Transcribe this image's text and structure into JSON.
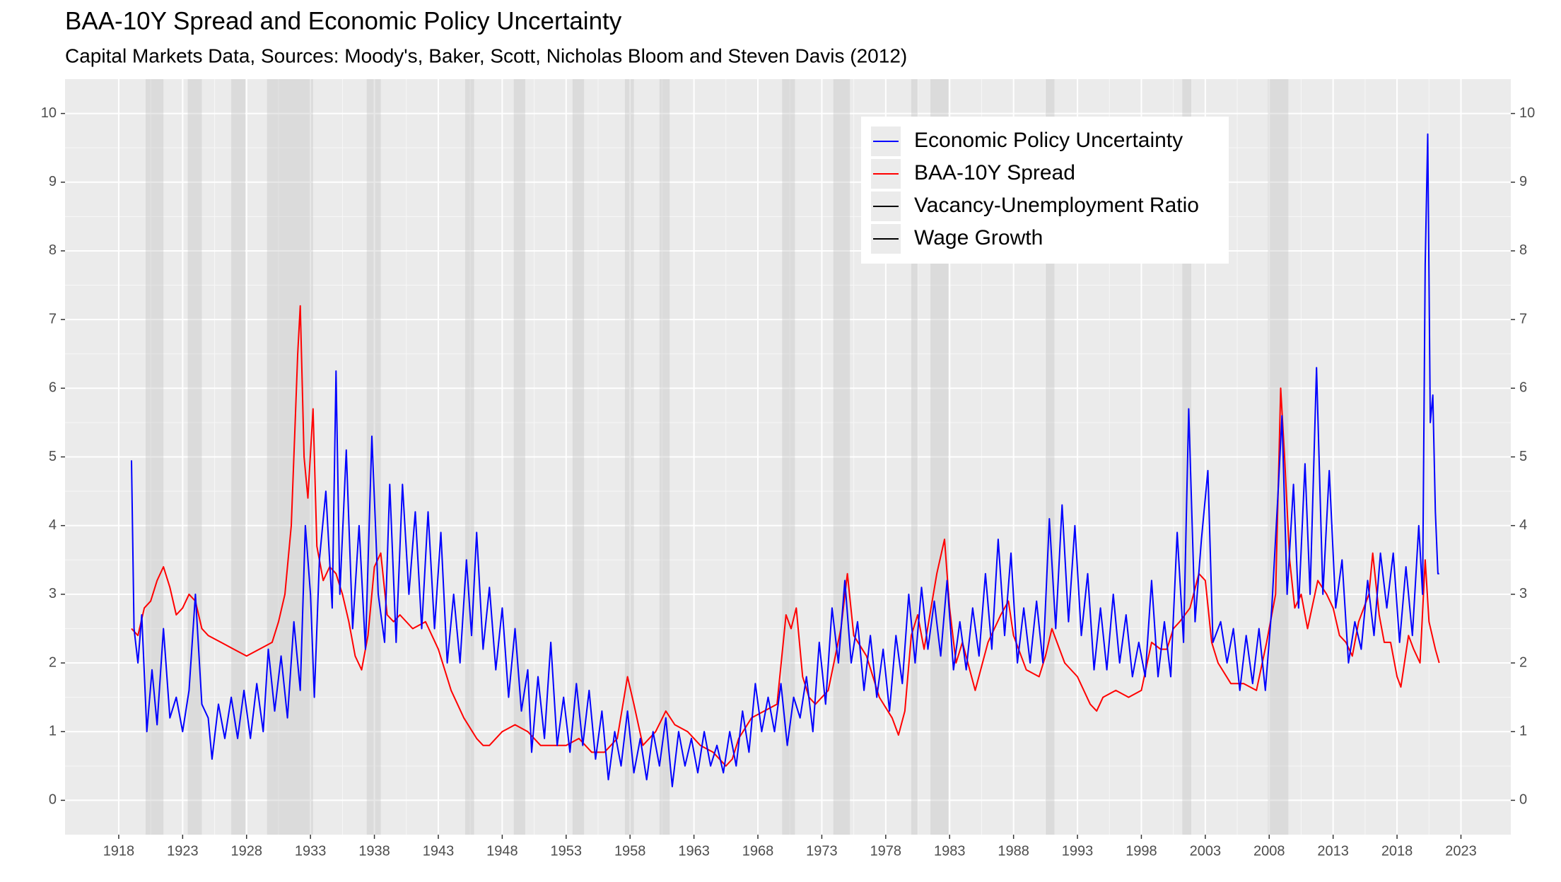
{
  "chart_data": {
    "type": "line",
    "title": "BAA-10Y Spread and Economic Policy Uncertainty",
    "subtitle": "Capital Markets Data, Sources: Moody's, Baker, Scott, Nicholas Bloom and Steven Davis (2012)",
    "xlim": [
      1913.8,
      2026.9
    ],
    "xticks": [
      1918,
      1923,
      1928,
      1933,
      1938,
      1943,
      1948,
      1953,
      1958,
      1963,
      1968,
      1973,
      1978,
      1983,
      1988,
      1993,
      1998,
      2003,
      2008,
      2013,
      2018,
      2023
    ],
    "ylim": [
      -0.5,
      10.5
    ],
    "yticks": [
      0,
      1,
      2,
      3,
      4,
      5,
      6,
      7,
      8,
      9,
      10
    ],
    "y2lim": [
      -0.5,
      10.5
    ],
    "y2ticks": [
      0,
      1,
      2,
      3,
      4,
      5,
      6,
      7,
      8,
      9,
      10
    ],
    "grid": true,
    "legend": "top-right",
    "recessions": [
      [
        1920.1,
        1921.5
      ],
      [
        1923.4,
        1924.5
      ],
      [
        1926.8,
        1927.9
      ],
      [
        1929.6,
        1933.2
      ],
      [
        1937.4,
        1938.5
      ],
      [
        1945.1,
        1945.8
      ],
      [
        1948.9,
        1949.8
      ],
      [
        1953.5,
        1954.4
      ],
      [
        1957.6,
        1958.3
      ],
      [
        1960.3,
        1961.1
      ],
      [
        1969.9,
        1970.9
      ],
      [
        1973.9,
        1975.2
      ],
      [
        1980.0,
        1980.5
      ],
      [
        1981.5,
        1982.9
      ],
      [
        1990.5,
        1991.2
      ],
      [
        2001.2,
        2001.9
      ],
      [
        2007.9,
        2009.5
      ]
    ],
    "series": [
      {
        "name": "Economic Policy Uncertainty",
        "color": "#0000ff",
        "x": [
          1919.0,
          1919.2,
          1919.5,
          1919.8,
          1920.2,
          1920.6,
          1921.0,
          1921.5,
          1922.0,
          1922.5,
          1923.0,
          1923.5,
          1924.0,
          1924.5,
          1925.0,
          1925.3,
          1925.8,
          1926.3,
          1926.8,
          1927.3,
          1927.8,
          1928.3,
          1928.8,
          1929.3,
          1929.7,
          1930.2,
          1930.7,
          1931.2,
          1931.7,
          1932.2,
          1932.6,
          1933.0,
          1933.3,
          1933.7,
          1934.2,
          1934.7,
          1935.0,
          1935.3,
          1935.8,
          1936.3,
          1936.8,
          1937.3,
          1937.8,
          1938.3,
          1938.8,
          1939.2,
          1939.7,
          1940.2,
          1940.7,
          1941.2,
          1941.7,
          1942.2,
          1942.7,
          1943.2,
          1943.7,
          1944.2,
          1944.7,
          1945.2,
          1945.6,
          1946.0,
          1946.5,
          1947.0,
          1947.5,
          1948.0,
          1948.5,
          1949.0,
          1949.5,
          1950.0,
          1950.3,
          1950.8,
          1951.3,
          1951.8,
          1952.3,
          1952.8,
          1953.3,
          1953.8,
          1954.3,
          1954.8,
          1955.3,
          1955.8,
          1956.3,
          1956.8,
          1957.3,
          1957.8,
          1958.3,
          1958.8,
          1959.3,
          1959.8,
          1960.3,
          1960.8,
          1961.3,
          1961.8,
          1962.3,
          1962.8,
          1963.3,
          1963.8,
          1964.3,
          1964.8,
          1965.3,
          1965.8,
          1966.3,
          1966.8,
          1967.3,
          1967.8,
          1968.3,
          1968.8,
          1969.3,
          1969.8,
          1970.3,
          1970.8,
          1971.3,
          1971.8,
          1972.3,
          1972.8,
          1973.3,
          1973.8,
          1974.3,
          1974.8,
          1975.3,
          1975.8,
          1976.3,
          1976.8,
          1977.3,
          1977.8,
          1978.3,
          1978.8,
          1979.3,
          1979.8,
          1980.3,
          1980.8,
          1981.3,
          1981.8,
          1982.3,
          1982.8,
          1983.3,
          1983.8,
          1984.3,
          1984.8,
          1985.3,
          1985.8,
          1986.3,
          1986.8,
          1987.3,
          1987.8,
          1988.3,
          1988.8,
          1989.3,
          1989.8,
          1990.3,
          1990.8,
          1991.3,
          1991.8,
          1992.3,
          1992.8,
          1993.3,
          1993.8,
          1994.3,
          1994.8,
          1995.3,
          1995.8,
          1996.3,
          1996.8,
          1997.3,
          1997.8,
          1998.3,
          1998.8,
          1999.3,
          1999.8,
          2000.3,
          2000.8,
          2001.3,
          2001.7,
          2002.2,
          2002.7,
          2003.2,
          2003.6,
          2004.2,
          2004.7,
          2005.2,
          2005.7,
          2006.2,
          2006.7,
          2007.2,
          2007.7,
          2008.2,
          2008.7,
          2009.0,
          2009.4,
          2009.9,
          2010.3,
          2010.8,
          2011.2,
          2011.7,
          2012.2,
          2012.7,
          2013.2,
          2013.7,
          2014.2,
          2014.7,
          2015.2,
          2015.7,
          2016.2,
          2016.7,
          2017.2,
          2017.7,
          2018.2,
          2018.7,
          2019.2,
          2019.7,
          2020.0,
          2020.2,
          2020.4,
          2020.6,
          2020.8,
          2021.0,
          2021.2,
          2021.3
        ],
        "values": [
          4.95,
          2.5,
          2.0,
          2.7,
          1.0,
          1.9,
          1.1,
          2.5,
          1.2,
          1.5,
          1.0,
          1.6,
          3.0,
          1.4,
          1.2,
          0.6,
          1.4,
          0.9,
          1.5,
          0.9,
          1.6,
          0.9,
          1.7,
          1.0,
          2.2,
          1.3,
          2.1,
          1.2,
          2.6,
          1.6,
          4.0,
          3.0,
          1.5,
          3.5,
          4.5,
          2.8,
          6.25,
          3.0,
          5.1,
          2.5,
          4.0,
          2.2,
          5.3,
          3.0,
          2.3,
          4.6,
          2.3,
          4.6,
          3.0,
          4.2,
          2.5,
          4.2,
          2.5,
          3.9,
          2.0,
          3.0,
          2.0,
          3.5,
          2.4,
          3.9,
          2.2,
          3.1,
          1.9,
          2.8,
          1.5,
          2.5,
          1.3,
          1.9,
          0.7,
          1.8,
          0.9,
          2.3,
          0.8,
          1.5,
          0.7,
          1.7,
          0.8,
          1.6,
          0.6,
          1.3,
          0.3,
          1.0,
          0.5,
          1.3,
          0.4,
          0.9,
          0.3,
          1.0,
          0.5,
          1.2,
          0.2,
          1.0,
          0.5,
          0.9,
          0.4,
          1.0,
          0.5,
          0.8,
          0.4,
          1.0,
          0.5,
          1.3,
          0.7,
          1.7,
          1.0,
          1.5,
          1.0,
          1.7,
          0.8,
          1.5,
          1.2,
          1.8,
          1.0,
          2.3,
          1.4,
          2.8,
          2.0,
          3.2,
          2.0,
          2.6,
          1.6,
          2.4,
          1.5,
          2.2,
          1.3,
          2.4,
          1.7,
          3.0,
          2.0,
          3.1,
          2.2,
          2.9,
          2.1,
          3.2,
          1.9,
          2.6,
          1.9,
          2.8,
          2.1,
          3.3,
          2.2,
          3.8,
          2.4,
          3.6,
          2.0,
          2.8,
          2.0,
          2.9,
          2.0,
          4.1,
          2.5,
          4.3,
          2.6,
          4.0,
          2.4,
          3.3,
          1.9,
          2.8,
          1.9,
          3.0,
          2.0,
          2.7,
          1.8,
          2.3,
          1.8,
          3.2,
          1.8,
          2.6,
          1.8,
          3.9,
          2.3,
          5.7,
          2.6,
          3.8,
          4.8,
          2.3,
          2.6,
          2.0,
          2.5,
          1.6,
          2.4,
          1.7,
          2.5,
          1.6,
          2.8,
          4.5,
          5.6,
          3.0,
          4.6,
          2.8,
          4.9,
          3.0,
          6.3,
          3.0,
          4.8,
          2.8,
          3.5,
          2.0,
          2.6,
          2.2,
          3.2,
          2.4,
          3.6,
          2.8,
          3.6,
          2.3,
          3.4,
          2.4,
          4.0,
          3.0,
          7.8,
          9.7,
          5.5,
          5.9,
          4.2,
          3.3,
          3.3
        ]
      },
      {
        "name": "BAA-10Y Spread",
        "color": "#ff0000",
        "x": [
          1919.0,
          1919.5,
          1920.0,
          1920.5,
          1921.0,
          1921.5,
          1922.0,
          1922.5,
          1923.0,
          1923.5,
          1924.0,
          1924.5,
          1925.0,
          1926.0,
          1927.0,
          1928.0,
          1929.0,
          1930.0,
          1930.5,
          1931.0,
          1931.5,
          1931.8,
          1932.0,
          1932.2,
          1932.5,
          1932.8,
          1933.2,
          1933.5,
          1934.0,
          1934.5,
          1935.0,
          1935.5,
          1936.0,
          1936.5,
          1937.0,
          1937.5,
          1938.0,
          1938.5,
          1939.0,
          1939.5,
          1940.0,
          1941.0,
          1942.0,
          1943.0,
          1944.0,
          1945.0,
          1946.0,
          1946.5,
          1947.0,
          1948.0,
          1949.0,
          1950.0,
          1951.0,
          1952.0,
          1953.0,
          1954.0,
          1955.0,
          1956.0,
          1957.0,
          1957.8,
          1958.3,
          1959.0,
          1960.0,
          1960.8,
          1961.5,
          1962.5,
          1963.5,
          1964.5,
          1965.5,
          1966.0,
          1966.5,
          1967.5,
          1968.5,
          1969.5,
          1970.2,
          1970.6,
          1971.0,
          1971.5,
          1972.0,
          1972.5,
          1973.5,
          1974.5,
          1975.0,
          1975.5,
          1976.5,
          1977.5,
          1978.5,
          1979.0,
          1979.5,
          1980.0,
          1980.5,
          1981.0,
          1982.0,
          1982.6,
          1983.0,
          1983.5,
          1984.0,
          1985.0,
          1986.0,
          1987.0,
          1987.6,
          1988.0,
          1989.0,
          1990.0,
          1990.5,
          1991.0,
          1992.0,
          1993.0,
          1994.0,
          1994.5,
          1995.0,
          1996.0,
          1997.0,
          1998.0,
          1998.8,
          1999.5,
          2000.0,
          2000.5,
          2001.0,
          2001.8,
          2002.5,
          2003.0,
          2003.5,
          2004.0,
          2005.0,
          2006.0,
          2007.0,
          2007.8,
          2008.5,
          2008.9,
          2009.2,
          2009.6,
          2010.0,
          2010.5,
          2011.0,
          2011.8,
          2012.5,
          2013.0,
          2013.5,
          2014.0,
          2014.5,
          2015.0,
          2015.8,
          2016.1,
          2016.6,
          2017.0,
          2017.5,
          2018.0,
          2018.3,
          2018.9,
          2019.3,
          2019.8,
          2020.2,
          2020.5,
          2021.0,
          2021.3
        ],
        "values": [
          2.5,
          2.4,
          2.8,
          2.9,
          3.2,
          3.4,
          3.1,
          2.7,
          2.8,
          3.0,
          2.9,
          2.5,
          2.4,
          2.3,
          2.2,
          2.1,
          2.2,
          2.3,
          2.6,
          3.0,
          4.0,
          5.5,
          6.5,
          7.2,
          5.0,
          4.4,
          5.7,
          3.7,
          3.2,
          3.4,
          3.3,
          3.0,
          2.6,
          2.1,
          1.9,
          2.4,
          3.4,
          3.6,
          2.7,
          2.6,
          2.7,
          2.5,
          2.6,
          2.2,
          1.6,
          1.2,
          0.9,
          0.8,
          0.8,
          1.0,
          1.1,
          1.0,
          0.8,
          0.8,
          0.8,
          0.9,
          0.7,
          0.7,
          0.9,
          1.8,
          1.4,
          0.8,
          1.0,
          1.3,
          1.1,
          1.0,
          0.8,
          0.7,
          0.5,
          0.6,
          0.9,
          1.2,
          1.3,
          1.4,
          2.7,
          2.5,
          2.8,
          1.8,
          1.5,
          1.4,
          1.6,
          2.5,
          3.3,
          2.4,
          2.1,
          1.5,
          1.2,
          0.95,
          1.3,
          2.4,
          2.7,
          2.2,
          3.3,
          3.8,
          2.8,
          2.0,
          2.3,
          1.6,
          2.3,
          2.7,
          2.9,
          2.4,
          1.9,
          1.8,
          2.1,
          2.5,
          2.0,
          1.8,
          1.4,
          1.3,
          1.5,
          1.6,
          1.5,
          1.6,
          2.3,
          2.2,
          2.2,
          2.5,
          2.6,
          2.8,
          3.3,
          3.2,
          2.3,
          2.0,
          1.7,
          1.7,
          1.6,
          2.3,
          3.0,
          6.0,
          5.0,
          3.5,
          2.8,
          3.0,
          2.5,
          3.2,
          3.0,
          2.8,
          2.4,
          2.3,
          2.1,
          2.6,
          3.0,
          3.6,
          2.7,
          2.3,
          2.3,
          1.8,
          1.65,
          2.4,
          2.2,
          2.0,
          3.5,
          2.6,
          2.2,
          2.0
        ]
      },
      {
        "name": "Vacancy-Unemployment Ratio",
        "color": "#000000",
        "x": [],
        "values": []
      },
      {
        "name": "Wage Growth",
        "color": "#000000",
        "x": [],
        "values": []
      }
    ]
  }
}
